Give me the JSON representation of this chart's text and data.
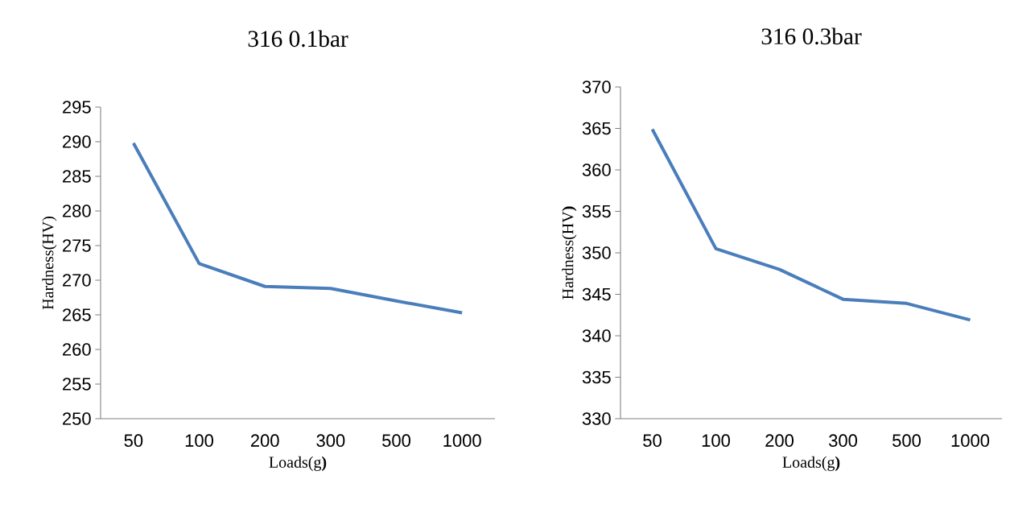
{
  "chart_data": [
    {
      "type": "line",
      "title": "316 0.1bar",
      "xlabel": "Loads(g**)**",
      "ylabel": "Hardness(HV)",
      "categories": [
        "50",
        "100",
        "200",
        "300",
        "500",
        "1000"
      ],
      "series": [
        {
          "color": "#4a7ebb",
          "values": [
            289.8,
            272.4,
            269.1,
            268.8,
            267.0,
            265.3
          ]
        }
      ],
      "ylim": [
        250,
        295
      ],
      "yticks": [
        250,
        255,
        260,
        265,
        270,
        275,
        280,
        285,
        290,
        295
      ]
    },
    {
      "type": "line",
      "title": "316 0.3bar",
      "xlabel": "Loads(g**)**",
      "ylabel": "Hardness(HV**)**",
      "categories": [
        "50",
        "100",
        "200",
        "300",
        "500",
        "1000"
      ],
      "series": [
        {
          "color": "#4a7ebb",
          "values": [
            364.9,
            350.5,
            348.0,
            344.4,
            343.9,
            341.9
          ]
        }
      ],
      "ylim": [
        330,
        370
      ],
      "yticks": [
        330,
        335,
        340,
        345,
        350,
        355,
        360,
        365,
        370
      ]
    }
  ]
}
